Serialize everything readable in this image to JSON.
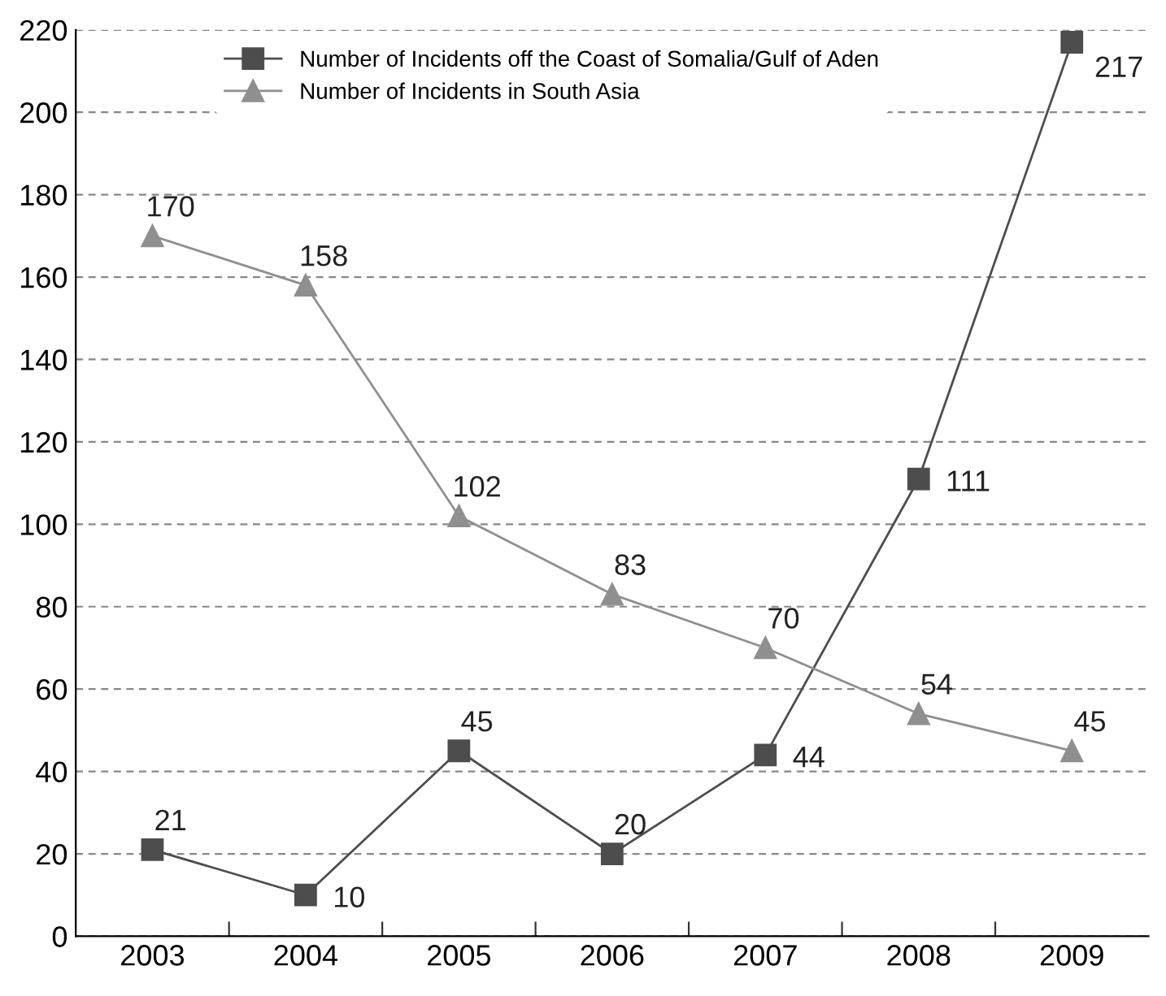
{
  "chart_data": {
    "type": "line",
    "categories": [
      "2003",
      "2004",
      "2005",
      "2006",
      "2007",
      "2008",
      "2009"
    ],
    "series": [
      {
        "name": "Number of Incidents off the Coast of Somalia/Gulf of Aden",
        "color": "#4d4d4d",
        "marker": "square",
        "values": [
          21,
          10,
          45,
          20,
          44,
          111,
          217
        ]
      },
      {
        "name": "Number of Incidents in South Asia",
        "color": "#8f8f8f",
        "marker": "triangle",
        "values": [
          170,
          158,
          102,
          83,
          70,
          54,
          45
        ]
      }
    ],
    "ylim": [
      0,
      220
    ],
    "yticks": [
      0,
      20,
      40,
      60,
      80,
      100,
      120,
      140,
      160,
      180,
      200,
      220
    ],
    "grid": "y",
    "legend": "top left",
    "data_labels": true,
    "line_style": "solid"
  }
}
